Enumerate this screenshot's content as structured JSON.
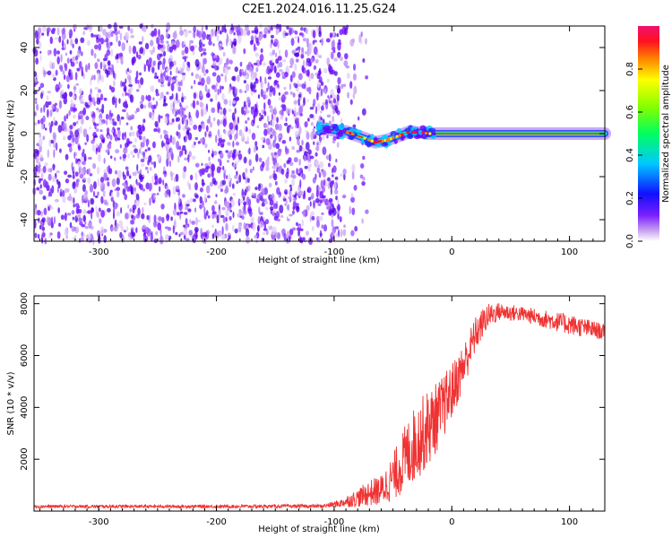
{
  "chart_data": [
    {
      "type": "heatmap",
      "title": "C2E1.2024.016.11.25.G24",
      "xlabel": "Height of straight line (km)",
      "ylabel": "Frequency (Hz)",
      "xlim": [
        -355,
        130
      ],
      "ylim": [
        -50,
        50
      ],
      "xticks": [
        -300,
        -200,
        -100,
        0,
        100
      ],
      "yticks": [
        -40,
        -20,
        0,
        20,
        40
      ],
      "colorbar": {
        "label": "Normalized spectral amplitude",
        "range": [
          0,
          1
        ],
        "ticks": [
          0.0,
          0.2,
          0.4,
          0.6,
          0.8
        ],
        "colormap": "rainbow"
      },
      "signal_track": {
        "description_free": true,
        "x": [
          -110,
          -100,
          -90,
          -80,
          -70,
          -65,
          -60,
          -55,
          -50,
          -45,
          -40,
          -35,
          -30,
          -25,
          -20,
          -10,
          0,
          20,
          50,
          100,
          130
        ],
        "freq": [
          2.5,
          1.5,
          1.0,
          -1.0,
          -3.0,
          -4.0,
          -3.5,
          -3.0,
          -2.0,
          -1.0,
          0.0,
          1.0,
          0.5,
          0.5,
          0.0,
          0.0,
          0.0,
          0.0,
          0.0,
          0.0,
          0.0
        ]
      },
      "noise_region_x": [
        -355,
        -95
      ],
      "grid": false
    },
    {
      "type": "line",
      "xlabel": "Height of straight line (km)",
      "ylabel": "SNR (10 * v/v)",
      "xlim": [
        -355,
        130
      ],
      "ylim": [
        0,
        8300
      ],
      "xticks": [
        -300,
        -200,
        -100,
        0,
        100
      ],
      "yticks": [
        2000,
        4000,
        6000,
        8000
      ],
      "color": "#f03232",
      "envelope": {
        "x": [
          -355,
          -200,
          -110,
          -95,
          -80,
          -70,
          -60,
          -50,
          -40,
          -30,
          -20,
          -10,
          0,
          10,
          20,
          30,
          40,
          60,
          80,
          100,
          120,
          130
        ],
        "mean": [
          180,
          180,
          190,
          300,
          500,
          700,
          800,
          1300,
          2000,
          2700,
          3200,
          3800,
          4600,
          5600,
          6800,
          7500,
          7700,
          7600,
          7400,
          7200,
          7000,
          6900
        ],
        "spread": [
          60,
          60,
          70,
          150,
          350,
          500,
          600,
          900,
          1300,
          1500,
          1500,
          1300,
          1100,
          900,
          700,
          500,
          350,
          300,
          350,
          400,
          350,
          300
        ]
      },
      "grid": false
    }
  ]
}
